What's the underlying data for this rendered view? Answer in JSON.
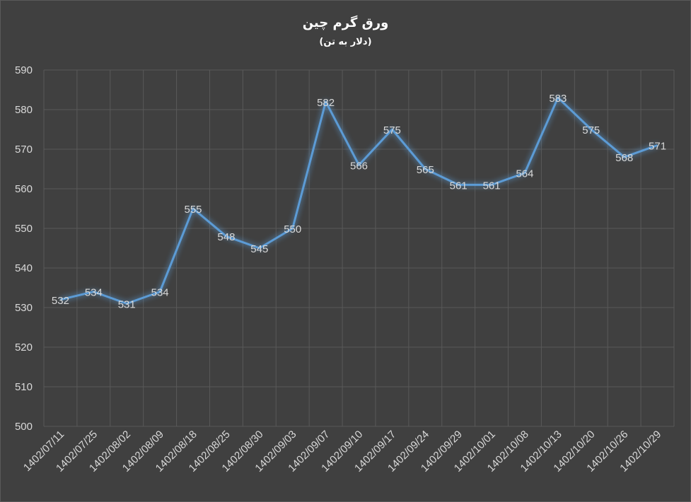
{
  "chart_data": {
    "type": "line",
    "title": "ورق گرم چین",
    "subtitle": "(دلار به تن)",
    "xlabel": "",
    "ylabel": "",
    "ylim": [
      500,
      590
    ],
    "yticks": [
      500,
      510,
      520,
      530,
      540,
      550,
      560,
      570,
      580,
      590
    ],
    "grid": true,
    "legend": "none",
    "line_color": "#5b9bd5",
    "categories": [
      "1402/07/11",
      "1402/07/25",
      "1402/08/02",
      "1402/08/09",
      "1402/08/18",
      "1402/08/25",
      "1402/08/30",
      "1402/09/03",
      "1402/09/07",
      "1402/09/10",
      "1402/09/17",
      "1402/09/24",
      "1402/09/29",
      "1402/10/01",
      "1402/10/08",
      "1402/10/13",
      "1402/10/20",
      "1402/10/26",
      "1402/10/29"
    ],
    "series": [
      {
        "values": [
          532,
          534,
          531,
          534,
          555,
          548,
          545,
          550,
          582,
          566,
          575,
          565,
          561,
          561,
          564,
          583,
          575,
          568,
          571
        ]
      }
    ]
  }
}
